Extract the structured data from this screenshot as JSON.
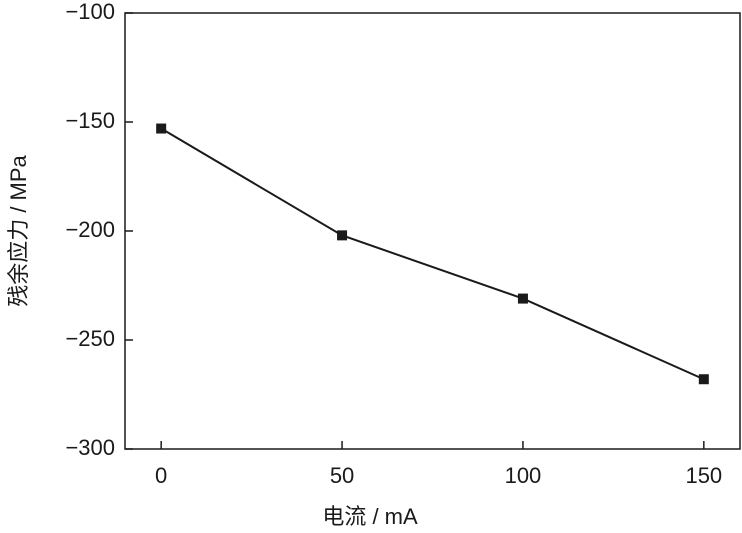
{
  "chart_data": {
    "type": "line",
    "x_label": "电流 / mA",
    "y_label": "残余应力 / MPa",
    "x": [
      0,
      50,
      100,
      150
    ],
    "series": [
      {
        "color": "#1a1a1a",
        "values": [
          -153,
          -202,
          -231,
          -268
        ]
      }
    ],
    "xlim": [
      -10,
      160
    ],
    "xticks": [
      0,
      50,
      100,
      150
    ],
    "ylim": [
      -300,
      -100
    ],
    "yticks": [
      {
        "value": -100,
        "label": "−100"
      },
      {
        "value": -150,
        "label": "−150"
      },
      {
        "value": -200,
        "label": "−200"
      },
      {
        "value": -250,
        "label": "−250"
      },
      {
        "value": -300,
        "label": "−300"
      }
    ],
    "grid": false
  }
}
